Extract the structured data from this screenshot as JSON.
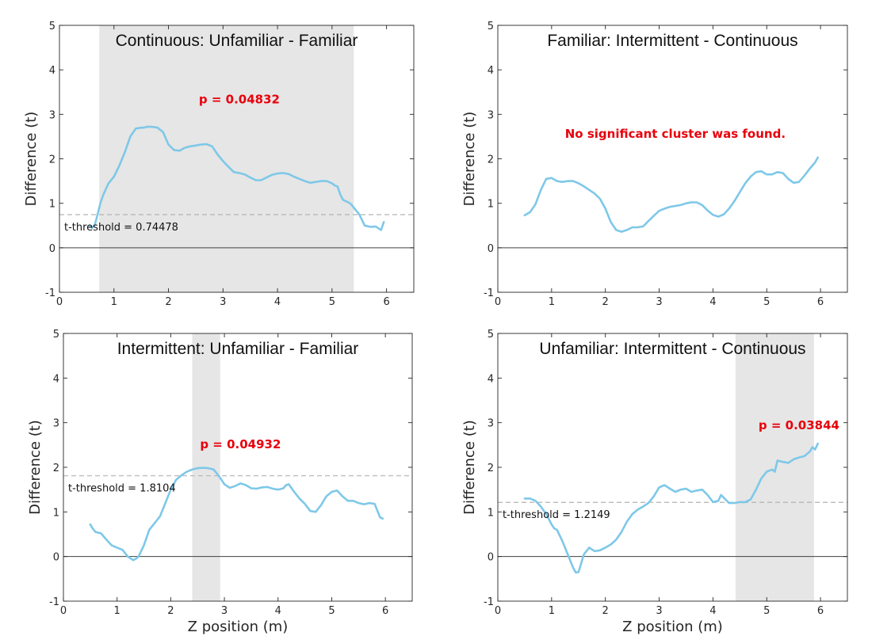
{
  "figure": {
    "xlabel": "Z position (m)",
    "ylabel": "Difference (t)"
  },
  "colors": {
    "line": "#7ec8e8",
    "shade": "#e6e6e6",
    "threshold": "#b3b3b3",
    "zero_line": "#404040",
    "annotation": "#e8000b",
    "axes": "#262626"
  },
  "chart_data": [
    {
      "type": "line",
      "title": "Continuous: Unfamiliar - Familiar",
      "xlabel": "",
      "ylabel": "Difference (t)",
      "xlim": [
        0,
        6.5
      ],
      "ylim": [
        -1,
        5
      ],
      "xticks": [
        0,
        1,
        2,
        3,
        4,
        5,
        6
      ],
      "yticks": [
        -1,
        0,
        1,
        2,
        3,
        4,
        5
      ],
      "threshold": 0.74478,
      "threshold_label": "t-threshold = 0.74478",
      "clusters": [
        [
          0.73,
          5.4
        ]
      ],
      "annotation": "p = 0.04832",
      "annotation_at": [
        3.3,
        3.25
      ],
      "x": [
        0.55,
        0.6,
        0.65,
        0.7,
        0.75,
        0.8,
        0.9,
        1.0,
        1.1,
        1.2,
        1.3,
        1.4,
        1.5,
        1.55,
        1.6,
        1.7,
        1.8,
        1.9,
        2.0,
        2.1,
        2.2,
        2.3,
        2.4,
        2.5,
        2.6,
        2.7,
        2.8,
        2.9,
        3.0,
        3.1,
        3.2,
        3.3,
        3.4,
        3.5,
        3.6,
        3.7,
        3.8,
        3.9,
        4.0,
        4.1,
        4.2,
        4.3,
        4.4,
        4.5,
        4.6,
        4.7,
        4.8,
        4.9,
        5.0,
        5.05,
        5.1,
        5.15,
        5.2,
        5.25,
        5.3,
        5.35,
        5.4,
        5.5,
        5.6,
        5.7,
        5.8,
        5.9,
        5.95
      ],
      "y": [
        0.5,
        0.45,
        0.52,
        0.75,
        1.0,
        1.18,
        1.45,
        1.6,
        1.85,
        2.15,
        2.5,
        2.68,
        2.7,
        2.7,
        2.72,
        2.72,
        2.7,
        2.6,
        2.32,
        2.2,
        2.18,
        2.25,
        2.28,
        2.3,
        2.32,
        2.33,
        2.28,
        2.1,
        1.95,
        1.82,
        1.7,
        1.68,
        1.65,
        1.58,
        1.52,
        1.52,
        1.58,
        1.64,
        1.67,
        1.68,
        1.66,
        1.6,
        1.55,
        1.5,
        1.46,
        1.48,
        1.5,
        1.5,
        1.45,
        1.4,
        1.38,
        1.2,
        1.08,
        1.05,
        1.02,
        0.98,
        0.9,
        0.75,
        0.5,
        0.47,
        0.48,
        0.4,
        0.58
      ]
    },
    {
      "type": "line",
      "title": "Familiar: Intermittent - Continuous",
      "xlabel": "",
      "ylabel": "Difference (t)",
      "xlim": [
        0,
        6.5
      ],
      "ylim": [
        -1,
        5
      ],
      "xticks": [
        0,
        1,
        2,
        3,
        4,
        5,
        6
      ],
      "yticks": [
        -1,
        0,
        1,
        2,
        3,
        4,
        5
      ],
      "threshold": null,
      "threshold_label": "",
      "clusters": [],
      "annotation": "No significant cluster was found.",
      "annotation_at": [
        3.3,
        2.47
      ],
      "x": [
        0.5,
        0.6,
        0.7,
        0.8,
        0.9,
        1.0,
        1.1,
        1.2,
        1.3,
        1.4,
        1.5,
        1.6,
        1.7,
        1.8,
        1.9,
        2.0,
        2.1,
        2.2,
        2.3,
        2.4,
        2.5,
        2.6,
        2.7,
        2.8,
        2.9,
        3.0,
        3.1,
        3.2,
        3.3,
        3.4,
        3.5,
        3.6,
        3.7,
        3.8,
        3.9,
        4.0,
        4.1,
        4.2,
        4.3,
        4.4,
        4.5,
        4.6,
        4.7,
        4.8,
        4.9,
        5.0,
        5.1,
        5.2,
        5.3,
        5.4,
        5.5,
        5.6,
        5.7,
        5.8,
        5.9,
        5.95
      ],
      "y": [
        0.73,
        0.8,
        0.98,
        1.3,
        1.55,
        1.57,
        1.5,
        1.48,
        1.5,
        1.5,
        1.45,
        1.38,
        1.3,
        1.22,
        1.1,
        0.88,
        0.58,
        0.4,
        0.36,
        0.4,
        0.46,
        0.46,
        0.48,
        0.6,
        0.72,
        0.83,
        0.88,
        0.92,
        0.94,
        0.96,
        1.0,
        1.02,
        1.02,
        0.96,
        0.84,
        0.74,
        0.7,
        0.75,
        0.88,
        1.05,
        1.25,
        1.45,
        1.6,
        1.7,
        1.72,
        1.65,
        1.65,
        1.7,
        1.68,
        1.55,
        1.46,
        1.48,
        1.62,
        1.78,
        1.92,
        2.03
      ]
    },
    {
      "type": "line",
      "title": "Intermittent: Unfamiliar - Familiar",
      "xlabel": "Z position (m)",
      "ylabel": "Difference (t)",
      "xlim": [
        0,
        6.5
      ],
      "ylim": [
        -1,
        5
      ],
      "xticks": [
        0,
        1,
        2,
        3,
        4,
        5,
        6
      ],
      "yticks": [
        -1,
        0,
        1,
        2,
        3,
        4,
        5
      ],
      "threshold": 1.8104,
      "threshold_label": "t-threshold = 1.8104",
      "clusters": [
        [
          2.4,
          2.92
        ]
      ],
      "annotation": "p = 0.04932",
      "annotation_at": [
        3.3,
        2.43
      ],
      "x": [
        0.5,
        0.55,
        0.6,
        0.7,
        0.8,
        0.9,
        1.0,
        1.1,
        1.2,
        1.3,
        1.35,
        1.4,
        1.5,
        1.6,
        1.7,
        1.8,
        1.9,
        2.0,
        2.1,
        2.2,
        2.3,
        2.4,
        2.5,
        2.6,
        2.7,
        2.8,
        2.9,
        3.0,
        3.1,
        3.2,
        3.3,
        3.4,
        3.5,
        3.6,
        3.7,
        3.8,
        3.9,
        4.0,
        4.1,
        4.15,
        4.2,
        4.3,
        4.4,
        4.5,
        4.6,
        4.7,
        4.8,
        4.9,
        5.0,
        5.1,
        5.2,
        5.3,
        5.4,
        5.5,
        5.6,
        5.7,
        5.8,
        5.9,
        5.95
      ],
      "y": [
        0.72,
        0.62,
        0.55,
        0.52,
        0.38,
        0.25,
        0.2,
        0.15,
        0.0,
        -0.08,
        -0.05,
        0.0,
        0.25,
        0.6,
        0.75,
        0.9,
        1.2,
        1.5,
        1.72,
        1.82,
        1.9,
        1.95,
        1.98,
        1.99,
        1.98,
        1.95,
        1.8,
        1.62,
        1.54,
        1.58,
        1.64,
        1.6,
        1.53,
        1.52,
        1.55,
        1.56,
        1.52,
        1.5,
        1.53,
        1.6,
        1.62,
        1.45,
        1.3,
        1.18,
        1.02,
        1.0,
        1.15,
        1.35,
        1.45,
        1.48,
        1.35,
        1.25,
        1.25,
        1.2,
        1.17,
        1.2,
        1.18,
        0.88,
        0.85
      ]
    },
    {
      "type": "line",
      "title": "Unfamiliar: Intermittent - Continuous",
      "xlabel": "Z position (m)",
      "ylabel": "Difference (t)",
      "xlim": [
        0,
        6.5
      ],
      "ylim": [
        -1,
        5
      ],
      "xticks": [
        0,
        1,
        2,
        3,
        4,
        5,
        6
      ],
      "yticks": [
        -1,
        0,
        1,
        2,
        3,
        4,
        5
      ],
      "threshold": 1.2149,
      "threshold_label": "t-threshold = 1.2149",
      "clusters": [
        [
          4.42,
          5.88
        ]
      ],
      "annotation": "p = 0.03844",
      "annotation_at": [
        5.6,
        2.85
      ],
      "x": [
        0.5,
        0.6,
        0.7,
        0.8,
        0.9,
        1.0,
        1.05,
        1.1,
        1.2,
        1.3,
        1.4,
        1.45,
        1.5,
        1.55,
        1.6,
        1.7,
        1.8,
        1.9,
        2.0,
        2.1,
        2.2,
        2.3,
        2.4,
        2.5,
        2.6,
        2.7,
        2.8,
        2.9,
        3.0,
        3.1,
        3.2,
        3.3,
        3.4,
        3.5,
        3.6,
        3.7,
        3.8,
        3.9,
        4.0,
        4.1,
        4.15,
        4.2,
        4.3,
        4.4,
        4.5,
        4.6,
        4.7,
        4.8,
        4.9,
        5.0,
        5.1,
        5.15,
        5.2,
        5.3,
        5.4,
        5.5,
        5.6,
        5.7,
        5.8,
        5.85,
        5.9,
        5.95
      ],
      "y": [
        1.3,
        1.3,
        1.25,
        1.12,
        0.95,
        0.72,
        0.63,
        0.6,
        0.35,
        0.05,
        -0.25,
        -0.36,
        -0.35,
        -0.15,
        0.05,
        0.2,
        0.12,
        0.14,
        0.2,
        0.27,
        0.38,
        0.55,
        0.78,
        0.95,
        1.05,
        1.12,
        1.2,
        1.35,
        1.55,
        1.6,
        1.52,
        1.45,
        1.5,
        1.52,
        1.45,
        1.48,
        1.5,
        1.38,
        1.22,
        1.25,
        1.38,
        1.32,
        1.2,
        1.2,
        1.22,
        1.22,
        1.28,
        1.5,
        1.75,
        1.9,
        1.95,
        1.9,
        2.15,
        2.12,
        2.1,
        2.18,
        2.22,
        2.25,
        2.35,
        2.45,
        2.4,
        2.53
      ]
    }
  ]
}
